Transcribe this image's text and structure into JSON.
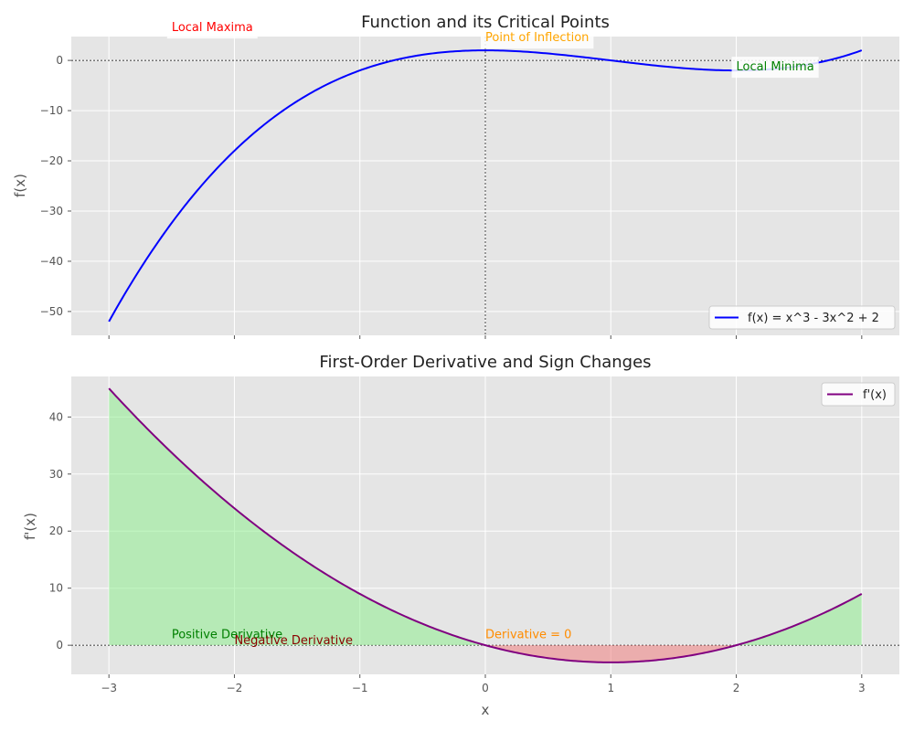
{
  "chart_data": [
    {
      "type": "line",
      "title": "Function and its Critical Points",
      "xlabel": "",
      "ylabel": "f(x)",
      "xlim": [
        -3.3,
        3.3
      ],
      "ylim": [
        -54.75,
        4.75
      ],
      "xticks": [
        -3,
        -2,
        -1,
        0,
        1,
        2,
        3
      ],
      "yticks": [
        0,
        -10,
        -20,
        -30,
        -40,
        -50
      ],
      "ytick_labels": [
        "0",
        "−10",
        "−20",
        "−30",
        "−40",
        "−50"
      ],
      "grid": true,
      "reference_lines": {
        "y": 0,
        "x": 0
      },
      "series": [
        {
          "name": "f(x) = x^3 - 3x^2 + 2",
          "color": "#0000ff",
          "formula": "x^3 - 3x^2 + 2",
          "x_range": [
            -3,
            3
          ]
        }
      ],
      "legend": {
        "position": "lower-right",
        "entries": [
          "f(x) = x^3 - 3x^2 + 2"
        ]
      },
      "annotations": [
        {
          "text": "Local Maxima",
          "x": -2.5,
          "y": 5.8,
          "color": "#ff0000"
        },
        {
          "text": "Point of Inflection",
          "x": 0,
          "y": 3.8,
          "color": "#ffa500"
        },
        {
          "text": "Local Minima",
          "x": 2,
          "y": -2.0,
          "color": "#008000"
        }
      ]
    },
    {
      "type": "area",
      "title": "First-Order Derivative and Sign Changes",
      "xlabel": "x",
      "ylabel": "f'(x)",
      "xlim": [
        -3.3,
        3.3
      ],
      "ylim": [
        -5.1,
        47.1
      ],
      "xticks": [
        -3,
        -2,
        -1,
        0,
        1,
        2,
        3
      ],
      "xtick_labels": [
        "−3",
        "−2",
        "−1",
        "0",
        "1",
        "2",
        "3"
      ],
      "yticks": [
        0,
        10,
        20,
        30,
        40
      ],
      "ytick_labels": [
        "0",
        "10",
        "20",
        "30",
        "40"
      ],
      "grid": true,
      "reference_lines": {
        "y": 0
      },
      "series": [
        {
          "name": "f'(x)",
          "color": "#800080",
          "formula": "3x^2 - 6x",
          "x_range": [
            -3,
            3
          ]
        }
      ],
      "fills": [
        {
          "condition": "positive",
          "color": "#90ee90"
        },
        {
          "condition": "negative",
          "color": "#f08080"
        }
      ],
      "legend": {
        "position": "top-right",
        "entries": [
          "f'(x)"
        ]
      },
      "annotations": [
        {
          "text": "Positive Derivative",
          "x": -2.5,
          "y": 1.2,
          "color": "#008000"
        },
        {
          "text": "Negative Derivative",
          "x": -2,
          "y": 0.15,
          "color": "#8b0000"
        },
        {
          "text": "Derivative = 0",
          "x": 0,
          "y": 1.2,
          "color": "#ff8c00"
        }
      ]
    }
  ]
}
